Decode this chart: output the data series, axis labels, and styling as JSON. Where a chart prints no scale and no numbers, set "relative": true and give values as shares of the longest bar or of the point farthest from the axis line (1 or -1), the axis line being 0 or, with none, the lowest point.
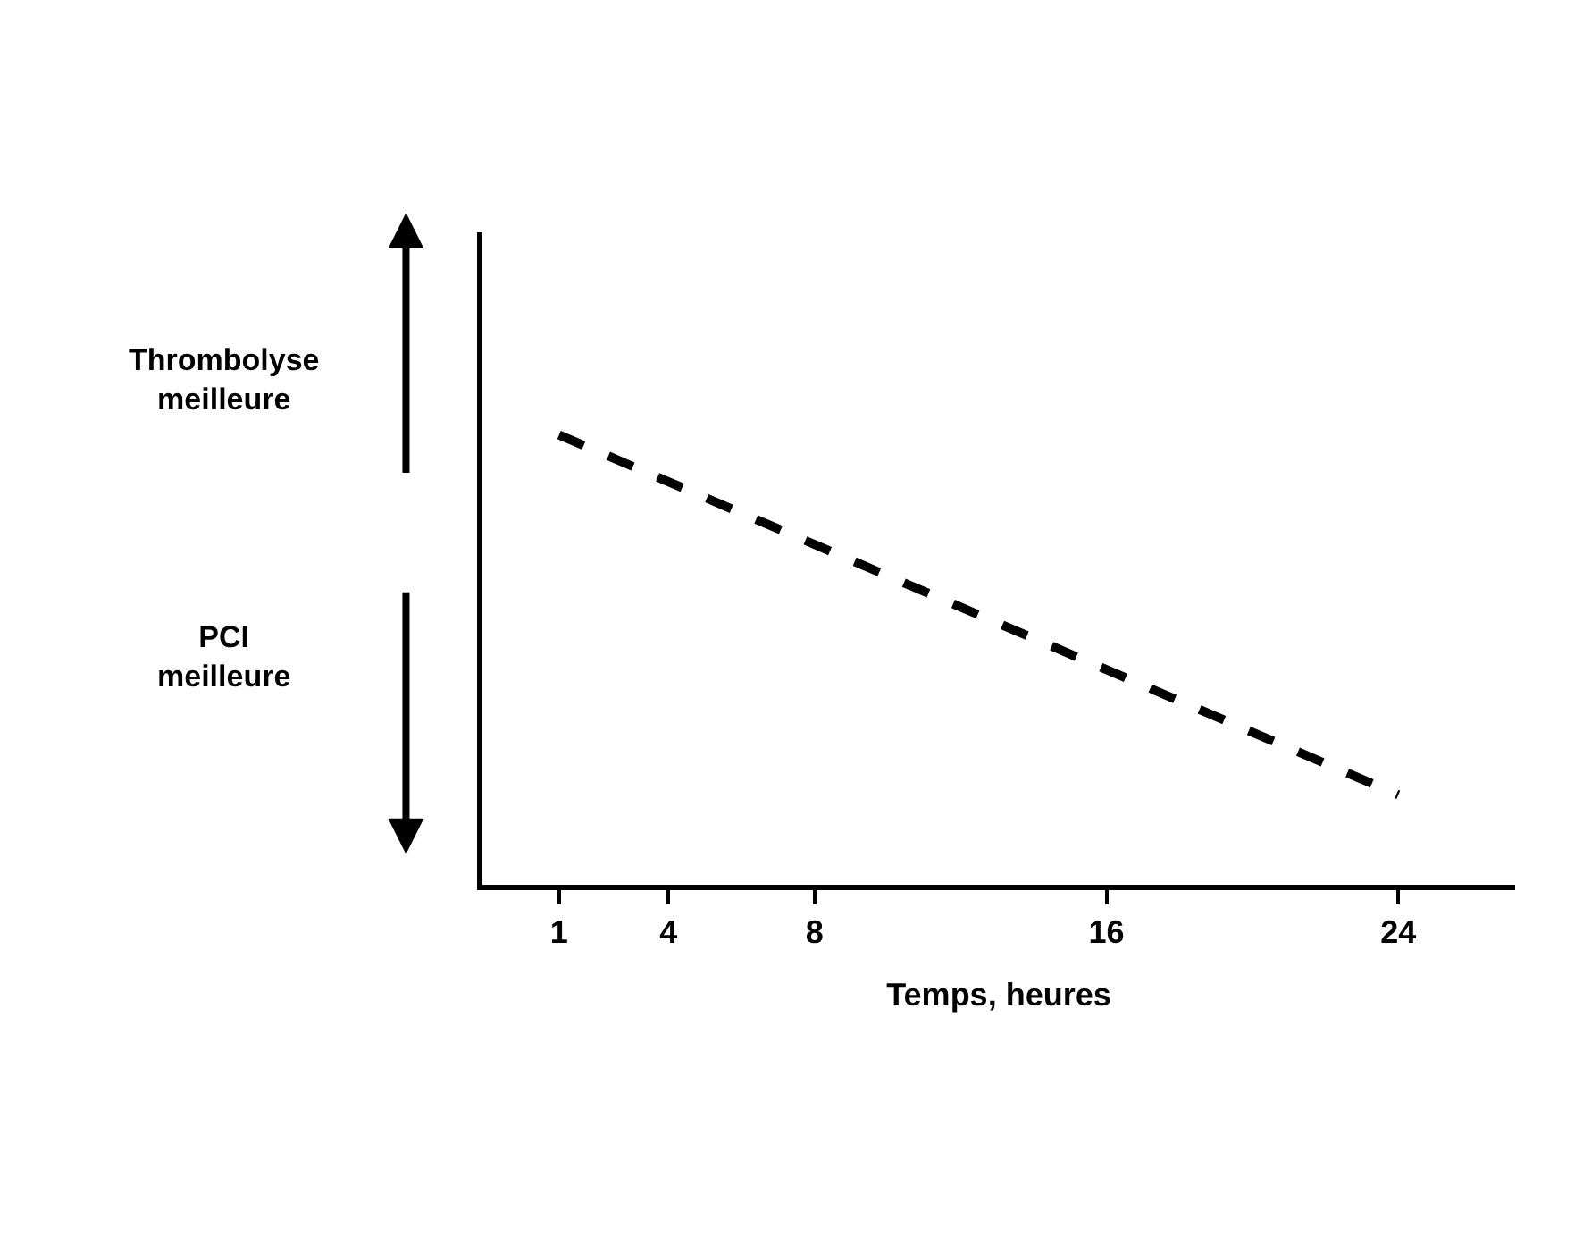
{
  "chart_data": {
    "type": "line",
    "relative": true,
    "xlabel": "Temps, heures",
    "x": [
      1,
      24
    ],
    "values": [
      1,
      0.2
    ],
    "color": "#000000",
    "line_style": "dashed",
    "marker": "none",
    "xlim": [
      -1.1,
      27.2
    ],
    "xticks": [
      1,
      4,
      8,
      16,
      24
    ],
    "tick_labels": "x",
    "annotations": [
      "Thrombolyse\nmeilleure",
      "PCI\nmeilleure"
    ]
  }
}
